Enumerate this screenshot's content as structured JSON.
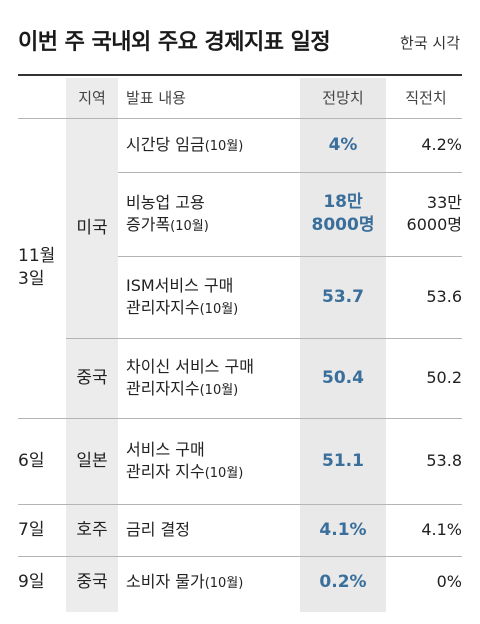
{
  "header": {
    "title": "이번 주 국내외 주요 경제지표 일정",
    "timezone": "한국 시각"
  },
  "columns": {
    "region": "지역",
    "content": "발표 내용",
    "forecast": "전망치",
    "previous": "직전치"
  },
  "dates": {
    "nov3": "11월\n3일",
    "d6": "6일",
    "d7": "7일",
    "d9": "9일"
  },
  "regions": {
    "us": "미국",
    "cn1": "중국",
    "jp": "일본",
    "au": "호주",
    "cn2": "중국"
  },
  "rows": [
    {
      "content": "시간당 임금",
      "suffix": "(10월)",
      "forecast": "4%",
      "previous": "4.2%"
    },
    {
      "content": "비농업 고용\n증가폭",
      "suffix": "(10월)",
      "forecast": "18만\n8000명",
      "previous": "33만\n6000명"
    },
    {
      "content": "ISM서비스 구매\n관리자지수",
      "suffix": "(10월)",
      "forecast": "53.7",
      "previous": "53.6"
    },
    {
      "content": "차이신 서비스 구매\n관리자지수",
      "suffix": "(10월)",
      "forecast": "50.4",
      "previous": "50.2"
    },
    {
      "content": "서비스 구매\n관리자 지수",
      "suffix": "(10월)",
      "forecast": "51.1",
      "previous": "53.8"
    },
    {
      "content": "금리 결정",
      "suffix": "",
      "forecast": "4.1%",
      "previous": "4.1%"
    },
    {
      "content": "소비자 물가",
      "suffix": "(10월)",
      "forecast": "0.2%",
      "previous": "0%"
    }
  ]
}
